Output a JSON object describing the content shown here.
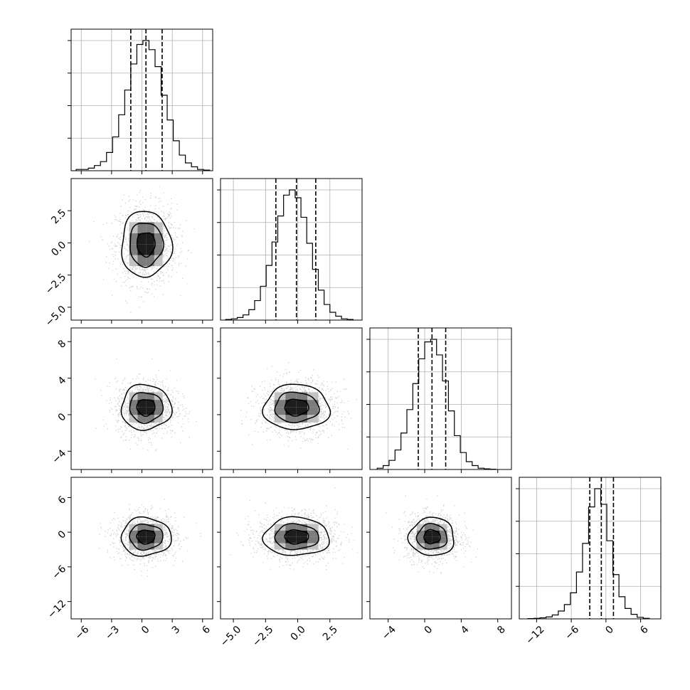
{
  "chart_data": {
    "type": "corner",
    "parameters": 4,
    "grid": true,
    "quantiles": [
      0.16,
      0.5,
      0.84
    ],
    "axes": [
      {
        "range": [
          -7,
          7
        ],
        "ticks": [
          -6,
          -3,
          0,
          3,
          6
        ],
        "tick_labels": [
          "−6",
          "−3",
          "0",
          "3",
          "6"
        ],
        "median": 0.4,
        "q16": -1.1,
        "q84": 2.0,
        "sigma": 1.5
      },
      {
        "range": [
          -6,
          5
        ],
        "ticks": [
          -5.0,
          -2.5,
          0.0,
          2.5
        ],
        "tick_labels": [
          "−5.0",
          "−2.5",
          "0.0",
          "2.5"
        ],
        "median": -0.1,
        "q16": -1.7,
        "q84": 1.4,
        "sigma": 1.55
      },
      {
        "range": [
          -6,
          9.5
        ],
        "ticks": [
          -4,
          0,
          4,
          8
        ],
        "tick_labels": [
          "−4",
          "0",
          "4",
          "8"
        ],
        "median": 0.8,
        "q16": -0.7,
        "q84": 2.3,
        "sigma": 1.5
      },
      {
        "range": [
          -15,
          9.5
        ],
        "ticks": [
          -12,
          -6,
          0,
          6
        ],
        "tick_labels": [
          "−12",
          "−6",
          "0",
          "6"
        ],
        "median": -0.8,
        "q16": -2.8,
        "q84": 1.3,
        "sigma": 2.0
      }
    ],
    "diagonal_histograms": [
      {
        "param": 0,
        "bin_edges": [
          -6.5,
          -5.9,
          -5.3,
          -4.7,
          -4.1,
          -3.5,
          -2.9,
          -2.3,
          -1.7,
          -1.1,
          -0.5,
          0.1,
          0.7,
          1.3,
          1.9,
          2.5,
          3.1,
          3.7,
          4.3,
          4.9,
          5.5,
          6.1,
          6.7
        ],
        "counts": [
          0.01,
          0.01,
          0.02,
          0.04,
          0.07,
          0.14,
          0.26,
          0.43,
          0.62,
          0.82,
          0.97,
          1.0,
          0.93,
          0.8,
          0.58,
          0.39,
          0.23,
          0.12,
          0.06,
          0.03,
          0.01,
          0.005
        ]
      },
      {
        "param": 1,
        "bin_edges": [
          -5.6,
          -5.15,
          -4.7,
          -4.25,
          -3.8,
          -3.35,
          -2.9,
          -2.45,
          -2.0,
          -1.55,
          -1.1,
          -0.65,
          -0.2,
          0.25,
          0.7,
          1.15,
          1.6,
          2.05,
          2.5,
          2.95,
          3.4,
          3.85,
          4.3
        ],
        "counts": [
          0.005,
          0.01,
          0.02,
          0.04,
          0.08,
          0.15,
          0.26,
          0.42,
          0.6,
          0.8,
          0.96,
          1.0,
          0.94,
          0.79,
          0.59,
          0.39,
          0.23,
          0.12,
          0.06,
          0.03,
          0.01,
          0.005
        ]
      },
      {
        "param": 2,
        "bin_edges": [
          -5.2,
          -4.55,
          -3.9,
          -3.25,
          -2.6,
          -1.95,
          -1.3,
          -0.65,
          0.0,
          0.65,
          1.3,
          1.95,
          2.6,
          3.25,
          3.9,
          4.55,
          5.2,
          5.85,
          6.5,
          7.15,
          7.8
        ],
        "counts": [
          0.01,
          0.03,
          0.07,
          0.15,
          0.28,
          0.46,
          0.66,
          0.85,
          0.98,
          1.0,
          0.88,
          0.68,
          0.45,
          0.26,
          0.13,
          0.06,
          0.03,
          0.01,
          0.005,
          0.002
        ]
      },
      {
        "param": 3,
        "bin_edges": [
          -13.5,
          -12.45,
          -11.4,
          -10.35,
          -9.3,
          -8.25,
          -7.2,
          -6.15,
          -5.1,
          -4.05,
          -3.0,
          -1.95,
          -0.9,
          0.15,
          1.2,
          2.25,
          3.3,
          4.35,
          5.4,
          6.45,
          7.5
        ],
        "counts": [
          0.002,
          0.004,
          0.008,
          0.015,
          0.03,
          0.06,
          0.11,
          0.2,
          0.36,
          0.58,
          0.86,
          1.0,
          0.88,
          0.6,
          0.34,
          0.17,
          0.08,
          0.035,
          0.012,
          0.004
        ]
      }
    ],
    "pair_contours": [
      {
        "x_param": 0,
        "y_param": 1,
        "sx": 1.5,
        "sy": 1.55,
        "levels_sigma": [
          0.6,
          1.1,
          1.65
        ]
      },
      {
        "x_param": 0,
        "y_param": 2,
        "sx": 1.5,
        "sy": 1.5,
        "levels_sigma": [
          0.6,
          1.1,
          1.65
        ]
      },
      {
        "x_param": 1,
        "y_param": 2,
        "sx": 1.55,
        "sy": 1.5,
        "levels_sigma": [
          0.6,
          1.1,
          1.65
        ]
      },
      {
        "x_param": 0,
        "y_param": 3,
        "sx": 1.5,
        "sy": 2.0,
        "levels_sigma": [
          0.6,
          1.1,
          1.65
        ]
      },
      {
        "x_param": 1,
        "y_param": 3,
        "sx": 1.55,
        "sy": 2.0,
        "levels_sigma": [
          0.6,
          1.1,
          1.65
        ]
      },
      {
        "x_param": 2,
        "y_param": 3,
        "sx": 1.5,
        "sy": 2.0,
        "levels_sigma": [
          0.6,
          1.1,
          1.65
        ]
      }
    ]
  }
}
